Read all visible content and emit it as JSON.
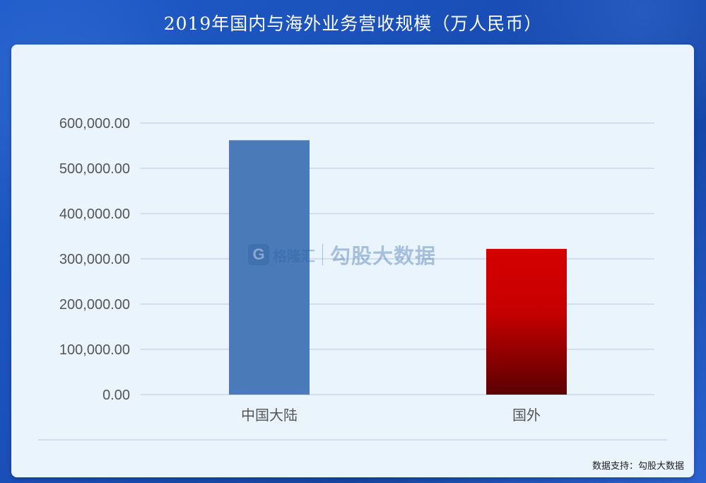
{
  "title": "2019年国内与海外业务营收规模（万人民币）",
  "source_text": "数据支持：勾股大数据",
  "watermark": {
    "logo_letter": "G",
    "brand": "格隆汇",
    "text": "勾股大数据"
  },
  "chart_data": {
    "type": "bar",
    "categories": [
      "中国大陆",
      "国外"
    ],
    "values": [
      562000,
      322000
    ],
    "ylim": [
      0,
      600000
    ],
    "yticks": [
      0,
      100000,
      200000,
      300000,
      400000,
      500000,
      600000
    ],
    "ytick_labels": [
      "0.00",
      "100,000.00",
      "200,000.00",
      "300,000.00",
      "400,000.00",
      "500,000.00",
      "600,000.00"
    ],
    "bar_colors": [
      "#4a7ab8",
      "gradient-red"
    ],
    "grid": true,
    "legend": "none"
  },
  "colors": {
    "background": "#1a4fb8",
    "card": "#eaf4fd",
    "bar_blue": "#4a7ab8",
    "bar_red_top": "#d60000",
    "bar_red_bottom": "#5a0000",
    "grid": "#c9d6e6"
  }
}
